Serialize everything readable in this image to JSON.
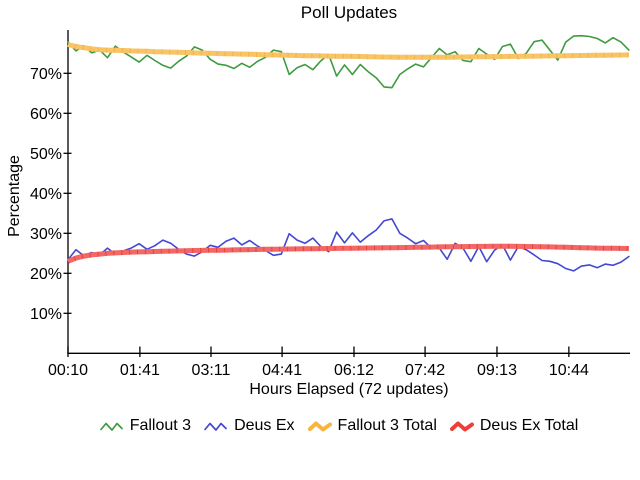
{
  "chart_data": {
    "type": "line",
    "title": "Poll Updates",
    "xlabel": "Hours Elapsed (72 updates)",
    "ylabel": "Percentage",
    "x_tick_labels": [
      "00:10",
      "01:41",
      "03:11",
      "04:41",
      "06:12",
      "07:42",
      "09:13",
      "10:44"
    ],
    "x_tick_positions": [
      0,
      9.1,
      18.1,
      27.1,
      36.2,
      45.2,
      54.3,
      63.4
    ],
    "y_tick_labels": [
      "10%",
      "20%",
      "30%",
      "40%",
      "50%",
      "60%",
      "70%"
    ],
    "y_tick_values": [
      10,
      20,
      30,
      40,
      50,
      60,
      70
    ],
    "ylim": [
      0,
      80.8
    ],
    "n_points": 72,
    "grid": false,
    "legend_position": "bottom",
    "background_color": "#ffffff",
    "axis_color": "#000000",
    "series": [
      {
        "name": "Fallout 3",
        "color": "#3f9b3f",
        "thickness": "thin",
        "values": [
          77.8,
          75.6,
          76.9,
          75.1,
          75.8,
          73.9,
          76.8,
          75.3,
          74.1,
          72.8,
          74.5,
          73.2,
          72.0,
          71.3,
          73.0,
          74.3,
          76.6,
          75.8,
          73.5,
          72.3,
          72.0,
          71.2,
          72.5,
          71.5,
          73.0,
          74.0,
          75.8,
          75.4,
          69.7,
          71.4,
          72.2,
          70.9,
          73.1,
          74.7,
          69.3,
          72.1,
          69.7,
          72.2,
          70.4,
          68.9,
          66.6,
          66.4,
          69.7,
          71.1,
          72.3,
          71.6,
          73.9,
          76.2,
          74.6,
          75.4,
          73.2,
          72.9,
          76.2,
          74.8,
          73.5,
          76.7,
          77.3,
          73.7,
          75.0,
          77.9,
          78.3,
          75.8,
          73.3,
          77.8,
          79.3,
          79.4,
          79.2,
          78.7,
          77.6,
          78.9,
          77.8,
          75.8
        ]
      },
      {
        "name": "Deus Ex",
        "color": "#4348d2",
        "thickness": "thin",
        "values": [
          23.4,
          25.9,
          24.4,
          25.2,
          24.6,
          26.3,
          24.8,
          25.6,
          26.3,
          27.4,
          26.0,
          26.9,
          28.3,
          27.5,
          26.0,
          24.8,
          24.3,
          25.4,
          27.0,
          26.5,
          28.0,
          28.8,
          27.1,
          28.2,
          26.8,
          25.7,
          24.5,
          24.8,
          29.9,
          28.3,
          27.5,
          28.8,
          26.7,
          25.4,
          30.3,
          27.6,
          30.1,
          27.8,
          29.4,
          30.8,
          33.1,
          33.6,
          30.0,
          28.8,
          27.4,
          28.2,
          26.3,
          26.3,
          23.5,
          27.5,
          26.3,
          23.0,
          26.7,
          22.9,
          25.8,
          27.1,
          23.3,
          26.7,
          25.9,
          24.6,
          23.2,
          23.0,
          22.4,
          21.2,
          20.6,
          21.8,
          22.1,
          21.4,
          22.3,
          22.0,
          22.8,
          24.2
        ]
      },
      {
        "name": "Fallout 3 Total",
        "color": "#f7b43e",
        "thickness": "thick",
        "values": [
          77.2,
          76.7,
          76.4,
          76.1,
          75.9,
          75.8,
          75.75,
          75.7,
          75.6,
          75.55,
          75.5,
          75.4,
          75.35,
          75.3,
          75.25,
          75.2,
          75.1,
          75.05,
          75.0,
          74.95,
          74.9,
          74.85,
          74.8,
          74.75,
          74.7,
          74.65,
          74.6,
          74.55,
          74.5,
          74.45,
          74.4,
          74.38,
          74.35,
          74.3,
          74.28,
          74.25,
          74.22,
          74.2,
          74.15,
          74.1,
          74.08,
          74.05,
          74.03,
          74.0,
          74.0,
          74.0,
          74.0,
          74.0,
          74.02,
          74.05,
          74.08,
          74.1,
          74.12,
          74.15,
          74.18,
          74.2,
          74.22,
          74.25,
          74.28,
          74.3,
          74.32,
          74.35,
          74.38,
          74.4,
          74.42,
          74.45,
          74.48,
          74.5,
          74.52,
          74.55,
          74.58,
          74.6
        ]
      },
      {
        "name": "Deus Ex Total",
        "color": "#ee3e3b",
        "thickness": "thick",
        "values": [
          23.0,
          23.8,
          24.3,
          24.6,
          24.8,
          25.0,
          25.1,
          25.2,
          25.3,
          25.35,
          25.4,
          25.45,
          25.5,
          25.55,
          25.6,
          25.65,
          25.7,
          25.72,
          25.75,
          25.78,
          25.8,
          25.85,
          25.9,
          25.92,
          25.95,
          26.0,
          26.02,
          26.05,
          26.08,
          26.1,
          26.12,
          26.15,
          26.18,
          26.2,
          26.22,
          26.25,
          26.28,
          26.3,
          26.32,
          26.35,
          26.38,
          26.4,
          26.42,
          26.45,
          26.5,
          26.52,
          26.55,
          26.6,
          26.62,
          26.65,
          26.68,
          26.7,
          26.72,
          26.73,
          26.74,
          26.75,
          26.74,
          26.72,
          26.7,
          26.68,
          26.65,
          26.6,
          26.55,
          26.5,
          26.45,
          26.4,
          26.35,
          26.3,
          26.28,
          26.25,
          26.22,
          26.2
        ]
      }
    ]
  }
}
